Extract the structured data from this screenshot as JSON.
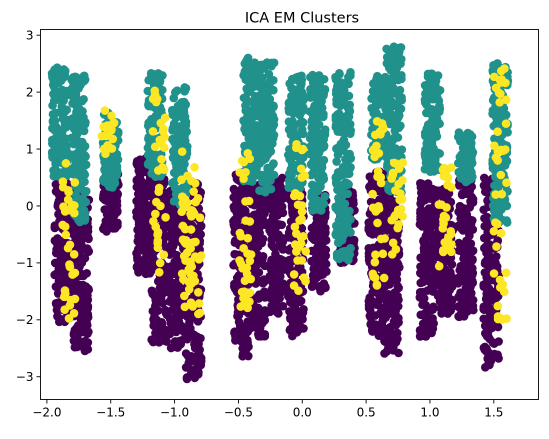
{
  "chart_data": {
    "type": "scatter",
    "title": "ICA EM Clusters",
    "xlabel": "",
    "ylabel": "",
    "xlim": [
      -2.05,
      1.85
    ],
    "ylim": [
      -3.4,
      3.1
    ],
    "xticks": [
      -2.0,
      -1.5,
      -1.0,
      -0.5,
      0.0,
      0.5,
      1.0,
      1.5
    ],
    "xtick_labels": [
      "−2.0",
      "−1.5",
      "−1.0",
      "−0.5",
      "0.0",
      "0.5",
      "1.0",
      "1.5"
    ],
    "yticks": [
      -3,
      -2,
      -1,
      0,
      1,
      2,
      3
    ],
    "ytick_labels": [
      "−3",
      "−2",
      "−1",
      "0",
      "1",
      "2",
      "3"
    ],
    "grid": false,
    "legend": "none",
    "colormap": "viridis",
    "cluster_colors": {
      "purple": "#440154",
      "teal": "#21918c",
      "yellow": "#fde725"
    },
    "series": [
      {
        "color": "#440154",
        "columns": [
          {
            "x": -1.88,
            "y_min": -2.05,
            "y_max": 0.55
          },
          {
            "x": -1.8,
            "y_min": -1.9,
            "y_max": 0.3
          },
          {
            "x": -1.73,
            "y_min": -2.55,
            "y_max": 0.2
          },
          {
            "x": -1.5,
            "y_min": -0.45,
            "y_max": 0.6
          },
          {
            "x": -1.24,
            "y_min": -1.2,
            "y_max": 0.9
          },
          {
            "x": -1.12,
            "y_min": -2.4,
            "y_max": 0.5
          },
          {
            "x": -0.98,
            "y_min": -2.5,
            "y_max": 0.3
          },
          {
            "x": -0.85,
            "y_min": -3.05,
            "y_max": 0.4
          },
          {
            "x": -0.48,
            "y_min": -2.65,
            "y_max": 0.6
          },
          {
            "x": -0.35,
            "y_min": -2.3,
            "y_max": 0.4
          },
          {
            "x": -0.2,
            "y_min": -1.9,
            "y_max": 0.5
          },
          {
            "x": -0.05,
            "y_min": -2.3,
            "y_max": 0.3
          },
          {
            "x": 0.13,
            "y_min": -1.5,
            "y_max": 0.2
          },
          {
            "x": 0.35,
            "y_min": -1.0,
            "y_max": 0.3
          },
          {
            "x": 0.58,
            "y_min": -2.3,
            "y_max": 0.6
          },
          {
            "x": 0.7,
            "y_min": -2.6,
            "y_max": 0.5
          },
          {
            "x": 0.98,
            "y_min": -2.3,
            "y_max": 0.4
          },
          {
            "x": 1.12,
            "y_min": -1.9,
            "y_max": 0.3
          },
          {
            "x": 1.28,
            "y_min": -1.95,
            "y_max": 0.6
          },
          {
            "x": 1.48,
            "y_min": -2.85,
            "y_max": 0.5
          }
        ]
      },
      {
        "color": "#21918c",
        "columns": [
          {
            "x": -1.9,
            "y_min": 0.5,
            "y_max": 2.45
          },
          {
            "x": -1.75,
            "y_min": -0.3,
            "y_max": 2.3
          },
          {
            "x": -1.5,
            "y_min": 0.3,
            "y_max": 1.65
          },
          {
            "x": -1.15,
            "y_min": 0.5,
            "y_max": 2.35
          },
          {
            "x": -0.96,
            "y_min": 0.0,
            "y_max": 2.1
          },
          {
            "x": -0.4,
            "y_min": 0.4,
            "y_max": 2.6
          },
          {
            "x": -0.28,
            "y_min": 0.2,
            "y_max": 2.55
          },
          {
            "x": -0.05,
            "y_min": 0.3,
            "y_max": 2.3
          },
          {
            "x": 0.12,
            "y_min": -0.1,
            "y_max": 2.3
          },
          {
            "x": 0.32,
            "y_min": -0.95,
            "y_max": 2.35
          },
          {
            "x": 0.6,
            "y_min": 0.8,
            "y_max": 2.3
          },
          {
            "x": 0.72,
            "y_min": 0.2,
            "y_max": 2.8
          },
          {
            "x": 1.02,
            "y_min": 0.6,
            "y_max": 2.35
          },
          {
            "x": 1.28,
            "y_min": 0.4,
            "y_max": 1.3
          },
          {
            "x": 1.55,
            "y_min": -0.3,
            "y_max": 2.62
          }
        ]
      },
      {
        "color": "#fde725",
        "columns": [
          {
            "x": -1.83,
            "y_min": -2.1,
            "y_max": 0.8
          },
          {
            "x": -1.52,
            "y_min": 0.8,
            "y_max": 1.7
          },
          {
            "x": -1.12,
            "y_min": -1.3,
            "y_max": 2.1
          },
          {
            "x": -0.9,
            "y_min": -2.2,
            "y_max": 1.0
          },
          {
            "x": -0.84,
            "y_min": -1.9,
            "y_max": 0.7
          },
          {
            "x": -0.45,
            "y_min": -1.8,
            "y_max": 1.4
          },
          {
            "x": -0.02,
            "y_min": -1.6,
            "y_max": 1.1
          },
          {
            "x": 0.6,
            "y_min": -1.4,
            "y_max": 1.6
          },
          {
            "x": 0.75,
            "y_min": -0.9,
            "y_max": 0.9
          },
          {
            "x": 1.12,
            "y_min": -1.2,
            "y_max": 0.8
          },
          {
            "x": 1.55,
            "y_min": -2.0,
            "y_max": 2.45
          }
        ]
      }
    ]
  }
}
